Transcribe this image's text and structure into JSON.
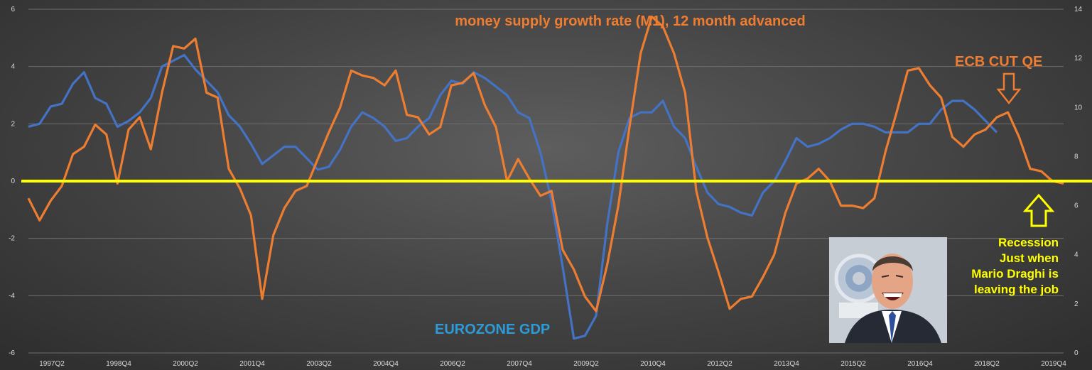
{
  "chart_data": {
    "type": "line",
    "title": "money supply growth rate (M1), 12 month advanced",
    "left_axis": {
      "ylim": [
        -6,
        6
      ],
      "ticks": [
        "6",
        "4",
        "2",
        "0",
        "-2",
        "-4",
        "-6"
      ]
    },
    "right_axis": {
      "ylim": [
        0,
        14
      ],
      "ticks": [
        "14",
        "12",
        "10",
        "8",
        "6",
        "4",
        "2",
        "0"
      ]
    },
    "x_tick_labels": [
      "1997Q2",
      "1998Q4",
      "2000Q2",
      "2001Q4",
      "2003Q2",
      "2004Q4",
      "2006Q2",
      "2007Q4",
      "2009Q2",
      "2010Q4",
      "2012Q2",
      "2013Q4",
      "2015Q2",
      "2016Q4",
      "2018Q2",
      "2019Q4"
    ],
    "grid": true,
    "reference_line": {
      "axis": "left",
      "y": 0,
      "color": "#ffff00"
    },
    "series": [
      {
        "name": "EUROZONE GDP",
        "axis": "left",
        "color": "#4472c4",
        "values": [
          1.9,
          2.0,
          2.6,
          2.7,
          3.4,
          3.8,
          2.9,
          2.7,
          1.9,
          2.1,
          2.4,
          2.9,
          4.0,
          4.2,
          4.4,
          3.9,
          3.5,
          3.1,
          2.3,
          1.9,
          1.3,
          0.6,
          0.9,
          1.2,
          1.2,
          0.8,
          0.4,
          0.5,
          1.1,
          1.9,
          2.4,
          2.2,
          1.9,
          1.4,
          1.5,
          1.9,
          2.2,
          3.0,
          3.5,
          3.4,
          3.8,
          3.6,
          3.3,
          3.0,
          2.4,
          2.2,
          1.0,
          -0.7,
          -3.0,
          -5.5,
          -5.4,
          -4.7,
          -1.5,
          1.0,
          2.2,
          2.4,
          2.4,
          2.8,
          1.9,
          1.5,
          0.5,
          -0.4,
          -0.8,
          -0.9,
          -1.1,
          -1.2,
          -0.4,
          0.0,
          0.7,
          1.5,
          1.2,
          1.3,
          1.5,
          1.8,
          2.0,
          2.0,
          1.9,
          1.7,
          1.7,
          1.7,
          2.0,
          2.0,
          2.5,
          2.8,
          2.8,
          2.5,
          2.1,
          1.7
        ]
      },
      {
        "name": "money supply growth rate (M1), 12 month advanced",
        "axis": "right",
        "color": "#ed7d31",
        "values": [
          6.3,
          5.4,
          6.2,
          6.8,
          8.1,
          8.4,
          9.3,
          8.9,
          6.9,
          9.1,
          9.6,
          8.3,
          10.6,
          12.5,
          12.4,
          12.8,
          10.6,
          10.4,
          7.5,
          6.7,
          5.6,
          2.2,
          4.8,
          5.9,
          6.6,
          6.8,
          7.9,
          9.0,
          10.0,
          11.5,
          11.3,
          11.2,
          10.9,
          11.5,
          9.7,
          9.6,
          8.9,
          9.2,
          10.9,
          11.0,
          11.4,
          10.1,
          9.2,
          7.0,
          7.9,
          7.1,
          6.4,
          6.6,
          4.2,
          3.4,
          2.3,
          1.7,
          3.6,
          6.0,
          9.2,
          12.2,
          13.7,
          13.3,
          12.2,
          10.6,
          6.6,
          4.7,
          3.3,
          1.8,
          2.2,
          2.3,
          3.1,
          4.0,
          5.7,
          6.9,
          7.1,
          7.5,
          7.0,
          6.0,
          6.0,
          5.9,
          6.3,
          8.2,
          9.8,
          11.5,
          11.6,
          10.9,
          10.4,
          8.8,
          8.4,
          8.9,
          9.1,
          9.6,
          9.8,
          8.8,
          7.5,
          7.4,
          7.0,
          6.9
        ]
      }
    ],
    "annotations": {
      "ecb": "ECB CUT QE",
      "gdp_label": "EUROZONE GDP",
      "recession": [
        "Recession",
        "Just when",
        "Mario Draghi is",
        "leaving the job"
      ]
    },
    "colors": {
      "arrow_ecb": "#ee7d31",
      "arrow_recession": "#ffff00"
    }
  }
}
